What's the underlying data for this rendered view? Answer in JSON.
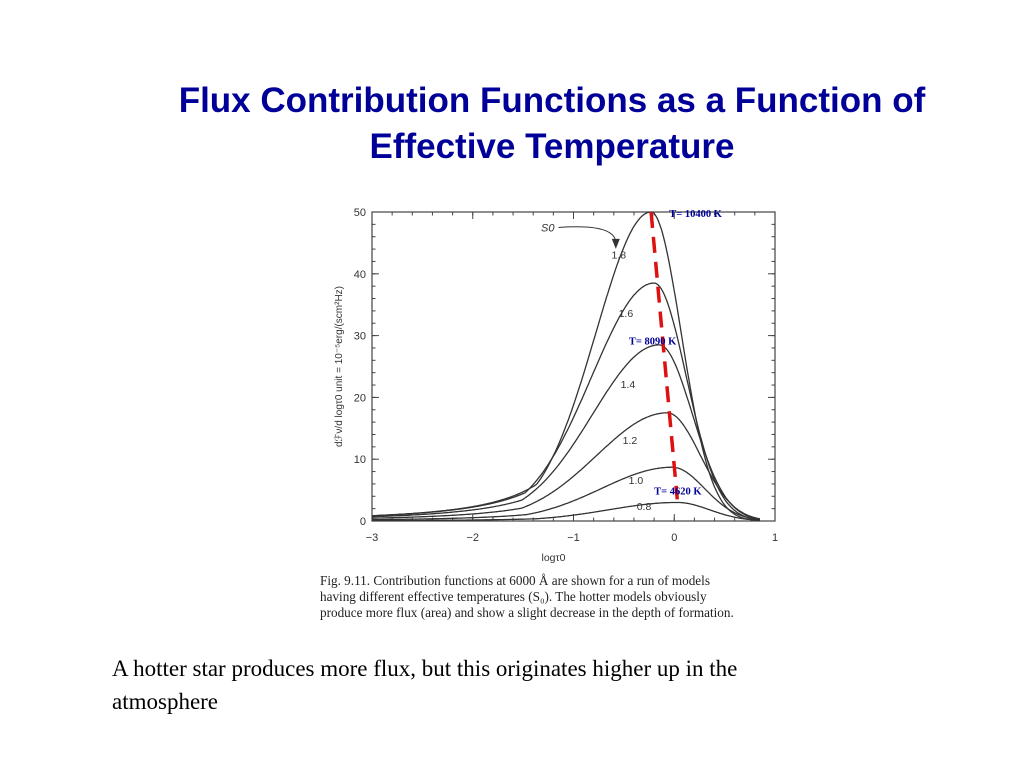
{
  "title": {
    "line1": "Flux Contribution Functions as a Function of",
    "line2": "Effective Temperature"
  },
  "chart_data": {
    "type": "line",
    "xlabel": "logτ0",
    "ylabel": "dℱν/d logτ0 unit = 10⁻⁵erg/(scm²Hz)",
    "xlim": [
      -3,
      1
    ],
    "ylim": [
      0,
      50
    ],
    "xticks": [
      -3,
      -2,
      -1,
      0,
      1
    ],
    "yticks": [
      0,
      10,
      20,
      30,
      40,
      50
    ],
    "xtick_labels": [
      "−3",
      "−2",
      "−1",
      "0",
      "1"
    ],
    "ytick_labels": [
      "0",
      "10",
      "20",
      "30",
      "40",
      "50"
    ],
    "grid": false,
    "s0_label": "S0",
    "series": [
      {
        "name": "1.8",
        "peak_x": -0.23,
        "peak_y": 50,
        "left_width": 0.55,
        "right_width": 0.3
      },
      {
        "name": "1.6",
        "peak_x": -0.2,
        "peak_y": 38.5,
        "left_width": 0.62,
        "right_width": 0.32
      },
      {
        "name": "1.4",
        "peak_x": -0.15,
        "peak_y": 28.5,
        "left_width": 0.66,
        "right_width": 0.33
      },
      {
        "name": "1.2",
        "peak_x": -0.07,
        "peak_y": 17.5,
        "left_width": 0.7,
        "right_width": 0.33
      },
      {
        "name": "1.0",
        "peak_x": -0.02,
        "peak_y": 8.7,
        "left_width": 0.7,
        "right_width": 0.32
      },
      {
        "name": "0.8",
        "peak_x": 0.03,
        "peak_y": 3.0,
        "left_width": 0.68,
        "right_width": 0.32
      }
    ],
    "series_label_positions": [
      {
        "label": "1.8",
        "x": -0.55,
        "y": 42.5
      },
      {
        "label": "1.6",
        "x": -0.48,
        "y": 33.0
      },
      {
        "label": "1.4",
        "x": -0.46,
        "y": 21.5
      },
      {
        "label": "1.2",
        "x": -0.44,
        "y": 12.5
      },
      {
        "label": "1.0",
        "x": -0.38,
        "y": 6.0
      },
      {
        "label": "0.8",
        "x": -0.3,
        "y": 1.8
      }
    ],
    "s0_anchor": {
      "x": -0.97,
      "y": 47.5
    },
    "s0_arrow_tip": {
      "x": -0.58,
      "y": 44.2
    },
    "trend_line": {
      "color": "#dd1111",
      "from": {
        "x": -0.23,
        "y": 50
      },
      "to": {
        "x": 0.03,
        "y": 3.5
      }
    },
    "annotations": [
      {
        "text": "T= 10400 K",
        "x": -0.05,
        "y": 49.2
      },
      {
        "text": "T= 8090 K",
        "x": -0.45,
        "y": 28.6
      },
      {
        "text": "T= 4620 K",
        "x": -0.2,
        "y": 4.3
      }
    ],
    "annotation_color": "#000099"
  },
  "caption": {
    "line1": "Fig. 9.11.   Contribution functions at 6000 Å are shown for a run of models",
    "line2": "having different effective temperatures (S₀). The hotter models obviously",
    "line3": "produce more flux (area) and show a slight decrease in the depth of formation."
  },
  "body_text": {
    "line1": "A hotter star produces more flux, but this originates higher up in the",
    "line2": "atmosphere"
  },
  "colors": {
    "title": "#000099",
    "trend": "#dd1111",
    "curve": "#333333"
  }
}
